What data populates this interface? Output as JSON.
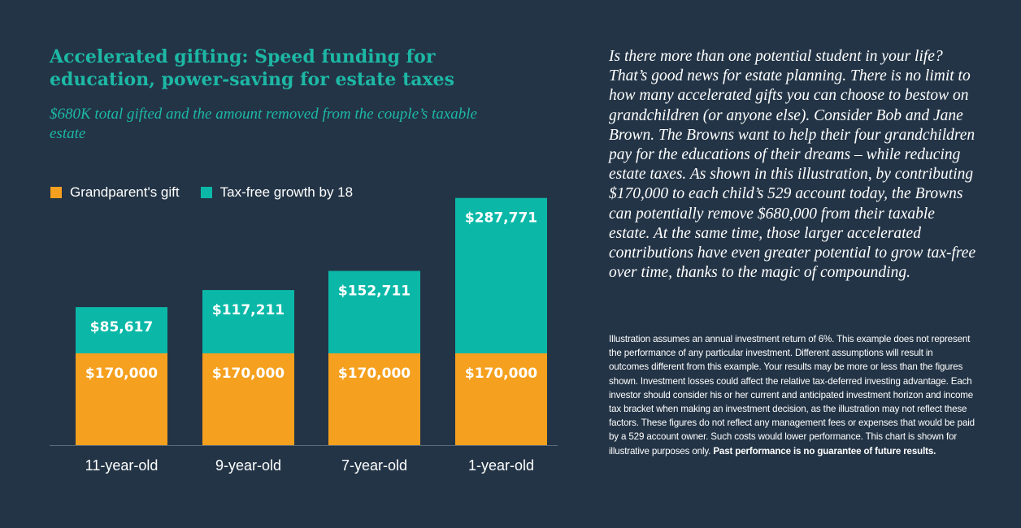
{
  "colors": {
    "background": "#233446",
    "accent": "#1db8a5",
    "gift": "#f5a01e",
    "growth": "#0bb8a8",
    "text": "#ffffff",
    "axis": "#5d6b79"
  },
  "chart": {
    "title": "Accelerated gifting: Speed funding for education, power-saving for estate taxes",
    "subtitle": "$680K total gifted and the amount removed from the couple’s taxable estate"
  },
  "chart_data": {
    "type": "bar",
    "stacked": true,
    "title": "Accelerated gifting: Speed funding for education, power-saving for estate taxes",
    "subtitle": "$680K total gifted and the amount removed from the couple’s taxable estate",
    "categories": [
      "11-year-old",
      "9-year-old",
      "7-year-old",
      "1-year-old"
    ],
    "series": [
      {
        "name": "Grandparent's gift",
        "values": [
          170000,
          170000,
          170000,
          170000
        ],
        "labels": [
          "$170,000",
          "$170,000",
          "$170,000",
          "$170,000"
        ]
      },
      {
        "name": "Tax-free growth by 18",
        "values": [
          85617,
          117211,
          152711,
          287771
        ],
        "labels": [
          "$85,617",
          "$117,211",
          "$152,711",
          "$287,771"
        ]
      }
    ],
    "ylim": [
      0,
      500000
    ],
    "xlabel": "",
    "ylabel": "",
    "legend_position": "top-left",
    "grid": false
  },
  "text": {
    "intro": "Is there more than one potential student in your life? That’s good news for estate planning. There is no limit to how many accelerated gifts you can choose to bestow on grandchildren (or anyone else). Consider Bob and Jane Brown. The Browns want to help their four grandchildren pay for the educations of their dreams – while reducing estate taxes. As shown in this illustration, by contributing $170,000 to each child’s 529 account today, the Browns can potentially remove $680,000 from their taxable estate. At the same time, those larger accelerated contributions have even greater potential to grow tax-free over time, thanks to the magic of compounding.",
    "disclaimer": "Illustration assumes an annual investment return of 6%. This example does not represent the performance of any particular investment. Different assumptions will result in outcomes different from this example. Your results may be more or less than the figures shown. Investment losses could affect the relative tax-deferred investing advantage. Each investor should consider his or her current and anticipated investment horizon and income tax bracket when making an investment decision, as the illustration may not reflect these factors. These figures do not reflect any management fees or expenses that would be paid by a 529 account owner. Such costs would lower performance. This chart is shown for illustrative purposes only.",
    "disclaimer_bold": "Past performance is no guarantee of future results."
  }
}
